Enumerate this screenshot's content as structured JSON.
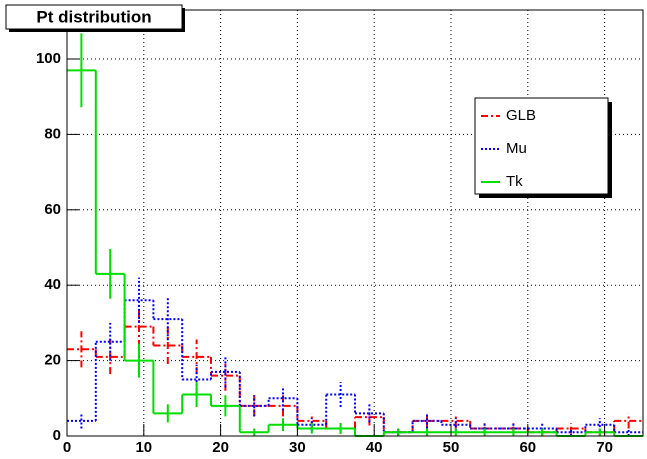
{
  "chart_data": {
    "type": "histogram",
    "title": "Pt distribution",
    "bins": [
      0,
      3.75,
      7.5,
      11.25,
      15,
      18.75,
      22.5,
      26.25,
      30,
      33.75,
      37.5,
      41.25,
      45,
      48.75,
      52.5,
      56.25,
      60,
      63.75,
      67.5,
      71.25,
      75
    ],
    "series": [
      {
        "name": "GLB",
        "color": "#ff0000",
        "dash": "7 3 2 3",
        "values": [
          23,
          21,
          29,
          24,
          21,
          16,
          8,
          8,
          4,
          2,
          5,
          1,
          4,
          4,
          2,
          2,
          1,
          2,
          1,
          4
        ],
        "errors": [
          4.8,
          4.6,
          5.4,
          4.9,
          4.6,
          4,
          2.8,
          2.8,
          2,
          1.4,
          2.2,
          1,
          2,
          2,
          1.4,
          1.4,
          1,
          1.4,
          1,
          2
        ]
      },
      {
        "name": "Mu",
        "color": "#0000ff",
        "dash": "2 2",
        "values": [
          4,
          25,
          36,
          31,
          15,
          17,
          8,
          10,
          3,
          11,
          6,
          1,
          4,
          3,
          2,
          2,
          2,
          1,
          3,
          1
        ],
        "errors": [
          2,
          5,
          6,
          5.6,
          3.9,
          4.1,
          2.8,
          3.2,
          1.7,
          3.3,
          2.4,
          1,
          2,
          1.7,
          1.4,
          1.4,
          1.4,
          1,
          1.7,
          1
        ]
      },
      {
        "name": "Tk",
        "color": "#00dd00",
        "dash": "",
        "values": [
          97,
          43,
          20,
          6,
          11,
          8,
          1,
          3,
          2,
          2,
          0,
          1,
          1,
          1,
          1,
          1,
          1,
          0,
          1,
          0
        ],
        "errors": [
          9.8,
          6.6,
          4.5,
          2.4,
          3.3,
          2.8,
          1,
          1.7,
          1.4,
          1.4,
          0,
          1,
          1,
          1,
          1,
          1,
          1,
          0,
          1,
          0
        ]
      }
    ],
    "xlim": [
      0,
      75
    ],
    "xticks": [
      0,
      10,
      20,
      30,
      40,
      50,
      60,
      70
    ],
    "ylim": [
      0,
      113
    ],
    "yticks": [
      0,
      20,
      40,
      60,
      80,
      100
    ],
    "grid": true
  }
}
